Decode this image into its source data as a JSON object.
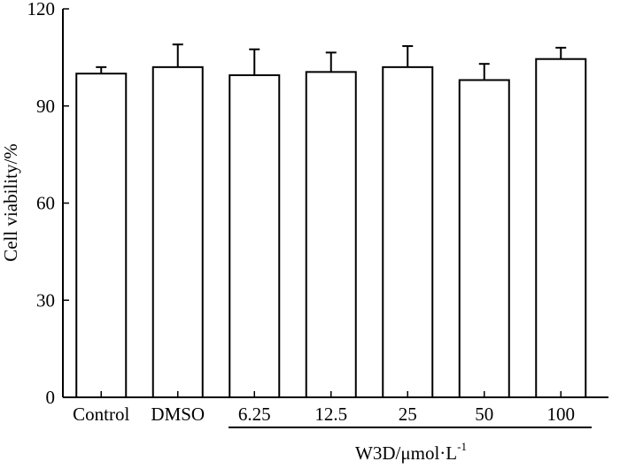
{
  "chart_data": {
    "type": "bar",
    "title": "",
    "categories": [
      "Control",
      "DMSO",
      "6.25",
      "12.5",
      "25",
      "50",
      "100"
    ],
    "series": [
      {
        "name": "Cell viability",
        "values": [
          100,
          102,
          99.5,
          100.5,
          102,
          98,
          104.5
        ],
        "errors": [
          2,
          7,
          8,
          6,
          6.5,
          5,
          3.5
        ]
      }
    ],
    "ylabel": "Cell viability/%",
    "ylim": [
      0,
      120
    ],
    "yticks": [
      0,
      30,
      60,
      90,
      120
    ],
    "xlabel_prefix": "W3D/μmol·L",
    "xlabel_superscript": "-1",
    "grid": false,
    "legend": "none"
  }
}
